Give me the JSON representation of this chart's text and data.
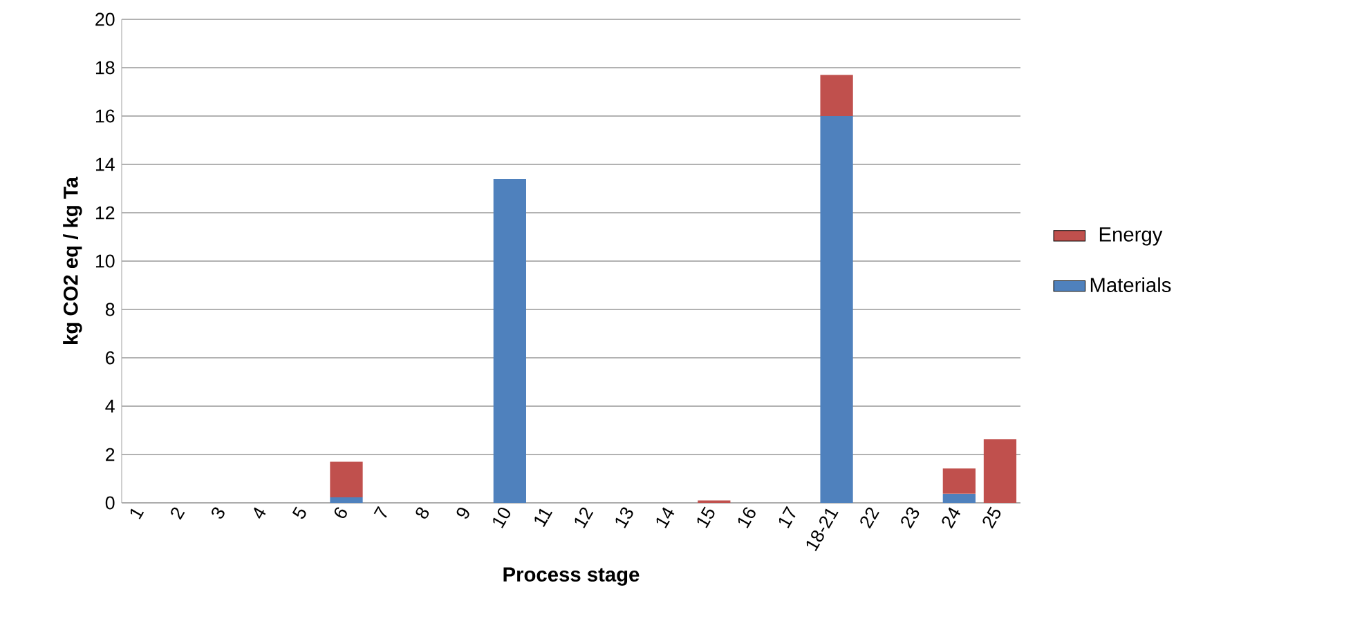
{
  "chart_data": {
    "type": "bar",
    "stacked": true,
    "xlabel": "Process stage",
    "ylabel": "kg CO2 eq / kg Ta",
    "categories": [
      "1",
      "2",
      "3",
      "4",
      "5",
      "6",
      "7",
      "8",
      "9",
      "10",
      "11",
      "12",
      "13",
      "14",
      "15",
      "16",
      "17",
      "18-21",
      "22",
      "23",
      "24",
      "25"
    ],
    "series": [
      {
        "name": "Materials",
        "color": "#4f81bd",
        "values": [
          0,
          0,
          0,
          0,
          0,
          0.23,
          0,
          0,
          0,
          13.4,
          0,
          0,
          0,
          0,
          0,
          0,
          0,
          16,
          0,
          0,
          0.38,
          0
        ]
      },
      {
        "name": "Energy",
        "color": "#c0504d",
        "values": [
          0,
          0,
          0,
          0,
          0,
          1.47,
          0,
          0,
          0,
          0,
          0,
          0,
          0,
          0,
          0.1,
          0,
          0,
          1.7,
          0,
          0,
          1.04,
          2.63
        ]
      }
    ],
    "ylim": [
      0,
      20
    ],
    "yticks": [
      0,
      2,
      4,
      6,
      8,
      10,
      12,
      14,
      16,
      18,
      20
    ],
    "grid": "y",
    "legend": "right"
  }
}
